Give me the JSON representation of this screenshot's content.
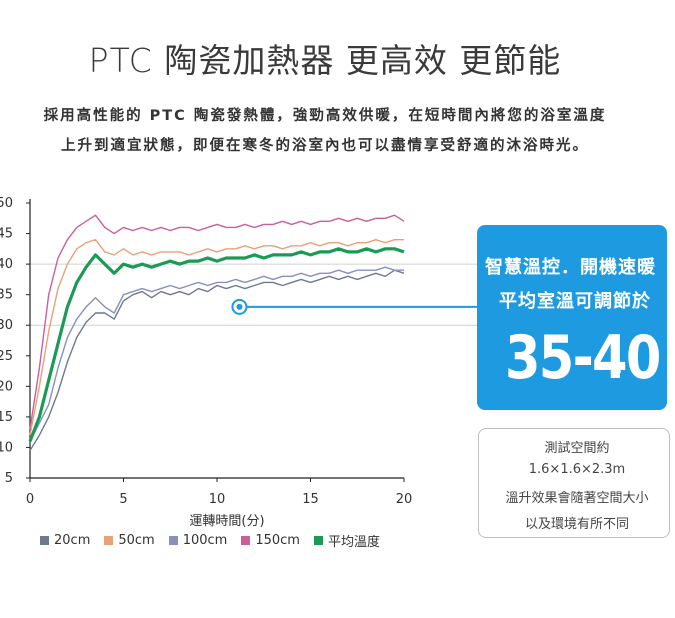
{
  "title": "PTC 陶瓷加熱器 更高效 更節能",
  "description": [
    "採用高性能的 PTC 陶瓷發熱體，強勁高效供暖，在短時間內將您的浴室溫度",
    "上升到適宜狀態，即便在寒冬的浴室內也可以盡情享受舒適的沐浴時光。"
  ],
  "callout": {
    "line1": "智慧溫控．開機速暖",
    "line2": "平均室溫可調節於",
    "range": "35-40",
    "unit": "°"
  },
  "note": {
    "lines": [
      "測試空間約",
      "1.6×1.6×2.3m",
      "溫升效果會隨著空間大小",
      "以及環境有所不同"
    ]
  },
  "chart_data": {
    "type": "line",
    "xlabel": "運轉時間(分)",
    "ylabel": "",
    "xlim": [
      0,
      20
    ],
    "ylim": [
      5,
      50
    ],
    "x_ticks": [
      0,
      5,
      10,
      15,
      20
    ],
    "y_ticks": [
      5,
      10,
      15,
      20,
      25,
      30,
      35,
      40,
      45,
      50
    ],
    "reference_lines": [
      30,
      40
    ],
    "marker": {
      "x": 11.2,
      "y": 33
    },
    "legend_position": "bottom",
    "x": [
      0,
      0.5,
      1,
      1.5,
      2,
      2.5,
      3,
      3.5,
      4,
      4.5,
      5,
      5.5,
      6,
      6.5,
      7,
      7.5,
      8,
      8.5,
      9,
      9.5,
      10,
      10.5,
      11,
      11.5,
      12,
      12.5,
      13,
      13.5,
      14,
      14.5,
      15,
      15.5,
      16,
      16.5,
      17,
      17.5,
      18,
      18.5,
      19,
      19.5,
      20
    ],
    "series": [
      {
        "name": "20cm",
        "color": "#6d7b8d",
        "values": [
          9.5,
          12,
          15,
          19,
          24,
          28,
          30.5,
          32,
          32,
          31,
          34,
          35,
          35.5,
          34.5,
          35.5,
          35,
          35.5,
          35,
          36,
          35.5,
          36.5,
          36,
          36.5,
          36,
          36.5,
          37,
          37,
          36.5,
          37,
          37.5,
          37,
          37.5,
          38,
          37.5,
          38,
          37.5,
          38,
          38.5,
          38,
          39,
          38.5
        ]
      },
      {
        "name": "50cm",
        "color": "#e8a27a",
        "values": [
          12,
          20,
          29,
          36,
          40,
          42.5,
          43.5,
          44,
          42,
          41.5,
          42.5,
          41.5,
          42,
          41.5,
          42,
          42,
          42,
          41.5,
          42,
          42.5,
          42,
          42.5,
          42.5,
          43,
          42.5,
          43,
          43,
          42.5,
          43,
          43,
          43.5,
          43,
          43.5,
          43.5,
          43,
          43.5,
          43.5,
          44,
          43.5,
          44,
          44
        ]
      },
      {
        "name": "100cm",
        "color": "#8a8fc2",
        "values": [
          11,
          14,
          17,
          23,
          28,
          31,
          33,
          34.5,
          33,
          32,
          35,
          35.5,
          36,
          35.5,
          36,
          36.5,
          36,
          36.5,
          37,
          36.5,
          37,
          37,
          37.5,
          37,
          37.5,
          38,
          37.5,
          38,
          38,
          38.5,
          38,
          38.5,
          38.5,
          39,
          38.5,
          39,
          39,
          39,
          39.5,
          39,
          39
        ]
      },
      {
        "name": "150cm",
        "color": "#c9609a",
        "values": [
          13,
          23,
          35,
          41,
          44,
          46,
          47,
          48,
          46,
          45,
          46,
          45.5,
          46,
          45.5,
          46,
          45.5,
          46,
          46,
          45.5,
          46,
          46.5,
          46,
          46,
          46.5,
          46,
          46.5,
          46.5,
          47,
          46.5,
          47,
          46.5,
          47,
          47,
          47.5,
          47,
          47.5,
          47,
          47.5,
          47.5,
          48,
          47
        ]
      },
      {
        "name": "平均溫度",
        "color": "#1a9a55",
        "values": [
          11,
          15,
          21,
          27,
          33,
          37,
          39.5,
          41.5,
          40,
          38.5,
          40,
          39.5,
          40,
          39.5,
          40,
          40.5,
          40,
          40.5,
          40.5,
          41,
          40.5,
          41,
          41,
          41,
          41.5,
          41,
          41.5,
          41.5,
          41.5,
          42,
          41.5,
          42,
          42,
          42.5,
          42,
          42,
          42.5,
          42,
          42.5,
          42.5,
          42
        ]
      }
    ]
  }
}
